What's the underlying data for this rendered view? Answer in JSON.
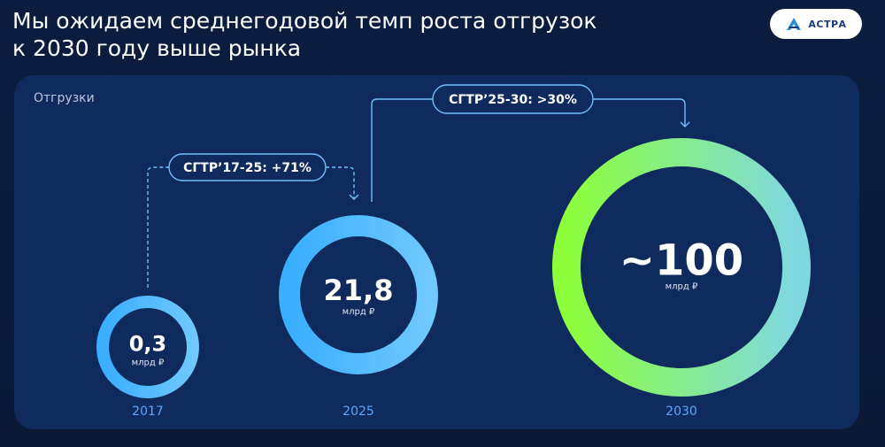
{
  "header": {
    "title_line1": "Мы ожидаем среднегодовой темп роста отгрузок",
    "title_line2": "к 2030 году выше рынка",
    "logo_text": "АСТРА"
  },
  "colors": {
    "background": "#0b1c3f",
    "panel": "#0f2a5c",
    "ring_blue": "#4ab8ff",
    "ring_green_start": "#8dff3a",
    "ring_green_end": "#7fd8e0",
    "year_label": "#5aa8ff"
  },
  "chart_data": {
    "type": "bubble",
    "title": "Отгрузки",
    "unit": "млрд ₽",
    "points": [
      {
        "year": "2017",
        "value": 0.3,
        "label": "0,3",
        "unit": "млрд ₽"
      },
      {
        "year": "2025",
        "value": 21.8,
        "label": "21,8",
        "unit": "млрд ₽"
      },
      {
        "year": "2030",
        "value": 100,
        "label": "~100",
        "unit": "млрд ₽"
      }
    ],
    "annotations": [
      {
        "from": "2017",
        "to": "2025",
        "text": "СГТР’17-25: +71%",
        "style": "dashed"
      },
      {
        "from": "2025",
        "to": "2030",
        "text": "СГТР’25-30: >30%",
        "style": "solid"
      }
    ]
  }
}
